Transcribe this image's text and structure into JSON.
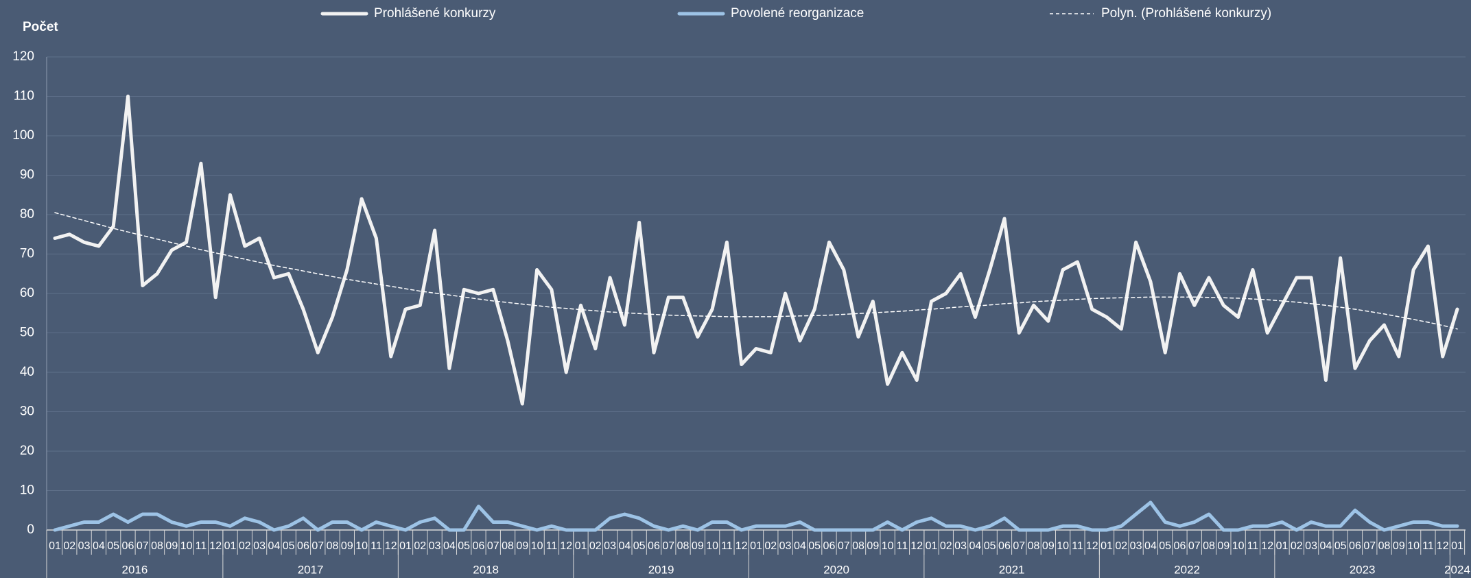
{
  "chart_data": {
    "type": "line",
    "y_label": "Počet",
    "categories": [
      "01",
      "02",
      "03",
      "04",
      "05",
      "06",
      "07",
      "08",
      "09",
      "10",
      "11",
      "12",
      "01",
      "02",
      "03",
      "04",
      "05",
      "06",
      "07",
      "08",
      "09",
      "10",
      "11",
      "12",
      "01",
      "02",
      "03",
      "04",
      "05",
      "06",
      "07",
      "08",
      "09",
      "10",
      "11",
      "12",
      "01",
      "02",
      "03",
      "04",
      "05",
      "06",
      "07",
      "08",
      "09",
      "10",
      "11",
      "12",
      "01",
      "02",
      "03",
      "04",
      "05",
      "06",
      "07",
      "08",
      "09",
      "10",
      "11",
      "12",
      "01",
      "02",
      "03",
      "04",
      "05",
      "06",
      "07",
      "08",
      "09",
      "10",
      "11",
      "12",
      "01",
      "02",
      "03",
      "04",
      "05",
      "06",
      "07",
      "08",
      "09",
      "10",
      "11",
      "12",
      "01",
      "02",
      "03",
      "04",
      "05",
      "06",
      "07",
      "08",
      "09",
      "10",
      "11",
      "12",
      "01"
    ],
    "years": [
      "2016",
      "2017",
      "2018",
      "2019",
      "2020",
      "2021",
      "2022",
      "2023",
      "2024"
    ],
    "series": [
      {
        "name": "Prohlášené konkurzy",
        "color": "#f2f2f2",
        "width": 5,
        "dashed": false,
        "values": [
          74,
          75,
          73,
          72,
          77,
          110,
          62,
          65,
          71,
          73,
          93,
          59,
          85,
          72,
          74,
          64,
          65,
          56,
          45,
          54,
          66,
          84,
          74,
          44,
          56,
          57,
          76,
          41,
          61,
          60,
          61,
          48,
          32,
          66,
          61,
          40,
          57,
          46,
          64,
          52,
          78,
          45,
          59,
          59,
          49,
          56,
          73,
          42,
          46,
          45,
          60,
          48,
          56,
          73,
          66,
          49,
          58,
          37,
          45,
          38,
          58,
          60,
          65,
          54,
          66,
          79,
          50,
          57,
          53,
          66,
          68,
          56,
          54,
          51,
          73,
          63,
          45,
          65,
          57,
          64,
          57,
          54,
          66,
          50,
          57,
          64,
          64,
          38,
          69,
          41,
          48,
          52,
          44,
          66,
          72,
          44,
          56
        ]
      },
      {
        "name": "Povolené reorganizace",
        "color": "#9dc3e6",
        "width": 5,
        "dashed": false,
        "values": [
          0,
          1,
          2,
          2,
          4,
          2,
          4,
          4,
          2,
          1,
          2,
          2,
          1,
          3,
          2,
          0,
          1,
          3,
          0,
          2,
          2,
          0,
          2,
          1,
          0,
          2,
          3,
          0,
          0,
          6,
          2,
          2,
          1,
          0,
          1,
          0,
          0,
          0,
          3,
          4,
          3,
          1,
          0,
          1,
          0,
          2,
          2,
          0,
          1,
          1,
          1,
          2,
          0,
          0,
          0,
          0,
          0,
          2,
          0,
          2,
          3,
          1,
          1,
          0,
          1,
          3,
          0,
          0,
          0,
          1,
          1,
          0,
          0,
          1,
          4,
          7,
          2,
          1,
          2,
          4,
          0,
          0,
          1,
          1,
          2,
          0,
          2,
          1,
          1,
          5,
          2,
          0,
          1,
          2,
          2,
          1,
          1
        ]
      },
      {
        "name": "Polyn. (Prohlášené konkurzy)",
        "color": "#ffffff",
        "width": 1.5,
        "dashed": true,
        "values": [
          80.5,
          79.5,
          78.5,
          77.5,
          76.5,
          75.6,
          74.7,
          73.8,
          72.9,
          72.0,
          71.1,
          70.3,
          69.5,
          68.7,
          67.9,
          67.1,
          66.4,
          65.7,
          65.0,
          64.3,
          63.6,
          63.0,
          62.4,
          61.8,
          61.2,
          60.6,
          60.1,
          59.6,
          59.1,
          58.6,
          58.1,
          57.7,
          57.3,
          56.9,
          56.5,
          56.2,
          55.9,
          55.6,
          55.3,
          55.1,
          54.9,
          54.7,
          54.5,
          54.4,
          54.3,
          54.2,
          54.1,
          54.1,
          54.1,
          54.1,
          54.2,
          54.3,
          54.4,
          54.5,
          54.7,
          54.9,
          55.1,
          55.3,
          55.5,
          55.8,
          56.0,
          56.3,
          56.6,
          56.8,
          57.1,
          57.4,
          57.6,
          57.9,
          58.1,
          58.3,
          58.5,
          58.7,
          58.8,
          58.9,
          59.0,
          59.1,
          59.1,
          59.1,
          59.1,
          59.0,
          58.9,
          58.8,
          58.6,
          58.4,
          58.1,
          57.8,
          57.4,
          57.0,
          56.5,
          56.0,
          55.4,
          54.8,
          54.1,
          53.4,
          52.7,
          51.9,
          51.0
        ]
      }
    ],
    "ylim": [
      0,
      120
    ],
    "yticks": [
      0,
      10,
      20,
      30,
      40,
      50,
      60,
      70,
      80,
      90,
      100,
      110,
      120
    ],
    "grid": true
  }
}
